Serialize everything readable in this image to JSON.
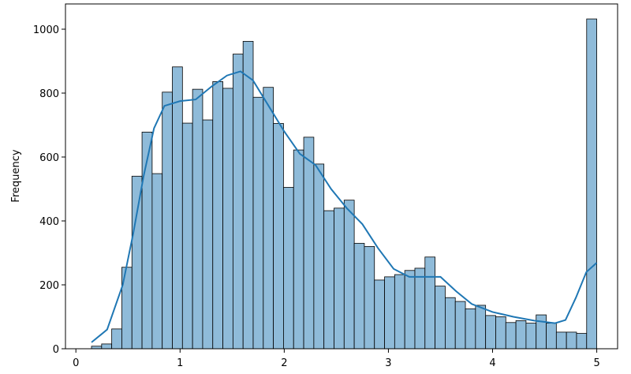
{
  "chart_data": {
    "type": "histogram",
    "y_label": "Frequency",
    "bins": [
      0.15,
      0.247,
      0.344,
      0.441,
      0.538,
      0.635,
      0.732,
      0.829,
      0.926,
      1.023,
      1.12,
      1.217,
      1.314,
      1.411,
      1.508,
      1.605,
      1.702,
      1.799,
      1.896,
      1.993,
      2.09,
      2.187,
      2.284,
      2.381,
      2.478,
      2.575,
      2.672,
      2.769,
      2.866,
      2.963,
      3.06,
      3.157,
      3.254,
      3.351,
      3.448,
      3.545,
      3.642,
      3.739,
      3.836,
      3.933,
      4.03,
      4.127,
      4.224,
      4.321,
      4.418,
      4.515,
      4.612,
      4.709,
      4.806,
      4.903,
      5.0
    ],
    "values": [
      8,
      15,
      62,
      255,
      540,
      678,
      548,
      803,
      882,
      706,
      812,
      716,
      836,
      815,
      922,
      962,
      787,
      818,
      705,
      505,
      622,
      662,
      578,
      432,
      440,
      465,
      330,
      320,
      215,
      225,
      232,
      245,
      252,
      287,
      196,
      160,
      148,
      125,
      136,
      104,
      100,
      82,
      88,
      80,
      106,
      80,
      52,
      52,
      48,
      1032
    ],
    "color": "#8fbbd9",
    "edge_color": "#000000",
    "kde": {
      "color": "#1f77b4",
      "x": [
        0.15,
        0.3,
        0.45,
        0.55,
        0.65,
        0.75,
        0.85,
        1.0,
        1.15,
        1.3,
        1.45,
        1.58,
        1.7,
        1.85,
        2.0,
        2.15,
        2.3,
        2.45,
        2.6,
        2.75,
        2.9,
        3.05,
        3.2,
        3.35,
        3.5,
        3.65,
        3.8,
        4.0,
        4.2,
        4.4,
        4.6,
        4.7,
        4.8,
        4.9,
        5.0
      ],
      "values": [
        20,
        60,
        200,
        360,
        540,
        690,
        760,
        775,
        780,
        820,
        855,
        868,
        840,
        760,
        680,
        610,
        575,
        500,
        440,
        390,
        315,
        250,
        225,
        225,
        225,
        180,
        140,
        115,
        100,
        88,
        80,
        90,
        160,
        240,
        269
      ]
    },
    "xlim": [
      -0.1,
      5.2
    ],
    "ylim": [
      0,
      1079
    ],
    "xticks": [
      0,
      1,
      2,
      3,
      4,
      5
    ],
    "yticks": [
      0,
      200,
      400,
      600,
      800,
      1000
    ]
  }
}
